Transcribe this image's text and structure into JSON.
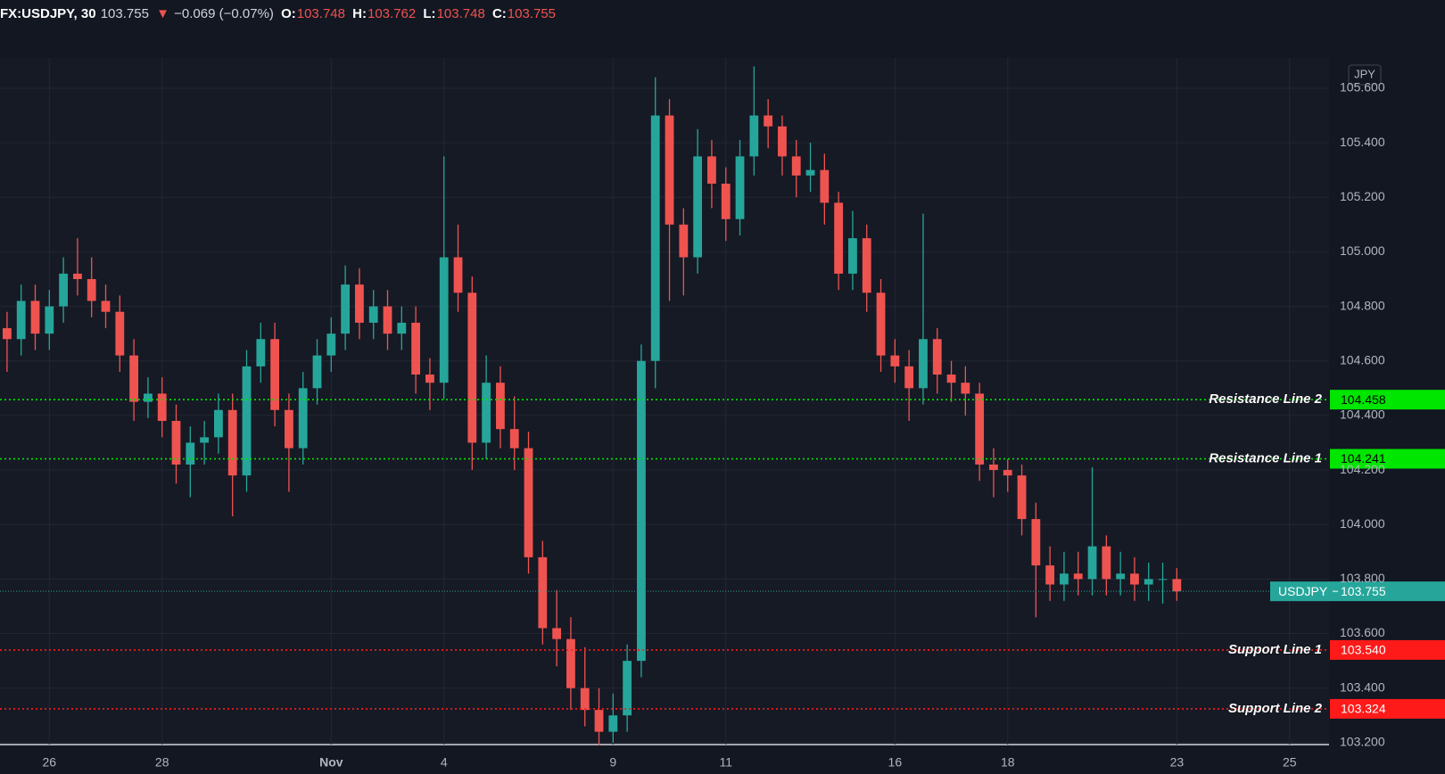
{
  "chart_data": {
    "type": "candlestick",
    "symbol": "FX:USDJPY, 30",
    "last_price": 103.755,
    "change_arrow": "▼",
    "change": "−0.069 (−0.07%)",
    "ohlc_labels": [
      "O:",
      "H:",
      "L:",
      "C:"
    ],
    "ohlc_values": [
      103.748,
      103.762,
      103.748,
      103.755
    ],
    "currency": "JPY",
    "up_color": "#26a69a",
    "down_color": "#ef5350",
    "open": [
      104.72,
      104.68,
      104.82,
      104.7,
      104.8,
      104.92,
      104.9,
      104.82,
      104.78,
      104.62,
      104.45,
      104.48,
      104.38,
      104.22,
      104.3,
      104.32,
      104.42,
      104.18,
      104.58,
      104.68,
      104.42,
      104.28,
      104.5,
      104.62,
      104.7,
      104.88,
      104.74,
      104.8,
      104.7,
      104.74,
      104.55,
      104.52,
      104.98,
      104.85,
      104.3,
      104.52,
      104.35,
      104.28,
      103.88,
      103.62,
      103.58,
      103.4,
      103.32,
      103.24,
      103.3,
      103.5,
      104.6,
      105.5,
      105.1,
      104.98,
      105.35,
      105.25,
      105.12,
      105.35,
      105.5,
      105.46,
      105.35,
      105.28,
      105.3,
      105.18,
      104.92,
      105.05,
      104.85,
      104.62,
      104.58,
      104.5,
      104.68,
      104.55,
      104.52,
      104.48,
      104.22,
      104.2,
      104.18,
      104.02,
      103.85,
      103.78,
      103.82,
      103.8,
      103.92,
      103.8,
      103.82,
      103.78,
      103.8,
      103.8
    ],
    "high": [
      104.78,
      104.88,
      104.88,
      104.86,
      104.98,
      105.05,
      104.98,
      104.88,
      104.84,
      104.68,
      104.54,
      104.54,
      104.44,
      104.36,
      104.38,
      104.48,
      104.48,
      104.64,
      104.74,
      104.74,
      104.48,
      104.56,
      104.68,
      104.76,
      104.95,
      104.94,
      104.86,
      104.86,
      104.8,
      104.8,
      104.61,
      105.35,
      105.1,
      104.91,
      104.62,
      104.58,
      104.47,
      104.34,
      103.94,
      103.76,
      103.66,
      103.55,
      103.4,
      103.38,
      103.56,
      104.66,
      105.64,
      105.56,
      105.16,
      105.45,
      105.41,
      105.31,
      105.41,
      105.68,
      105.56,
      105.5,
      105.41,
      105.4,
      105.36,
      105.22,
      105.15,
      105.1,
      104.9,
      104.68,
      104.64,
      105.14,
      104.72,
      104.6,
      104.58,
      104.52,
      104.28,
      104.24,
      104.22,
      104.08,
      103.92,
      103.9,
      103.9,
      104.21,
      103.96,
      103.9,
      103.88,
      103.86,
      103.86,
      103.84
    ],
    "low": [
      104.56,
      104.62,
      104.64,
      104.64,
      104.74,
      104.84,
      104.76,
      104.72,
      104.56,
      104.38,
      104.39,
      104.32,
      104.15,
      104.1,
      104.22,
      104.26,
      104.03,
      104.12,
      104.52,
      104.36,
      104.12,
      104.22,
      104.44,
      104.56,
      104.64,
      104.68,
      104.68,
      104.64,
      104.64,
      104.48,
      104.42,
      104.46,
      104.78,
      104.2,
      104.24,
      104.28,
      104.2,
      103.82,
      103.56,
      103.48,
      103.32,
      103.26,
      103.19,
      103.2,
      103.24,
      103.44,
      104.5,
      104.82,
      104.84,
      104.92,
      105.16,
      105.04,
      105.06,
      105.28,
      105.38,
      105.28,
      105.2,
      105.22,
      105.1,
      104.86,
      104.86,
      104.78,
      104.56,
      104.52,
      104.38,
      104.44,
      104.48,
      104.45,
      104.4,
      104.16,
      104.1,
      104.12,
      103.96,
      103.66,
      103.72,
      103.72,
      103.74,
      103.74,
      103.74,
      103.74,
      103.72,
      103.72,
      103.71,
      103.72
    ],
    "close": [
      104.68,
      104.82,
      104.7,
      104.8,
      104.92,
      104.9,
      104.82,
      104.78,
      104.62,
      104.45,
      104.48,
      104.38,
      104.22,
      104.3,
      104.32,
      104.42,
      104.18,
      104.58,
      104.68,
      104.42,
      104.28,
      104.5,
      104.62,
      104.7,
      104.88,
      104.74,
      104.8,
      104.7,
      104.74,
      104.55,
      104.52,
      104.98,
      104.85,
      104.3,
      104.52,
      104.35,
      104.28,
      103.88,
      103.62,
      103.58,
      103.4,
      103.32,
      103.24,
      103.3,
      103.5,
      104.6,
      105.5,
      105.1,
      104.98,
      105.35,
      105.25,
      105.12,
      105.35,
      105.5,
      105.46,
      105.35,
      105.28,
      105.3,
      105.18,
      104.92,
      105.05,
      104.85,
      104.62,
      104.58,
      104.5,
      104.68,
      104.55,
      104.52,
      104.48,
      104.22,
      104.2,
      104.18,
      104.02,
      103.85,
      103.78,
      103.82,
      103.8,
      103.92,
      103.8,
      103.82,
      103.78,
      103.8,
      103.8,
      103.755
    ],
    "xlim": [
      -0.5,
      93.8
    ],
    "xticks": [
      {
        "value": 3,
        "label": "26"
      },
      {
        "value": 11,
        "label": "28"
      },
      {
        "value": 23,
        "label": "Nov"
      },
      {
        "value": 31,
        "label": "4"
      },
      {
        "value": 43,
        "label": "9"
      },
      {
        "value": 51,
        "label": "11"
      },
      {
        "value": 63,
        "label": "16"
      },
      {
        "value": 71,
        "label": "18"
      },
      {
        "value": 83,
        "label": "23"
      },
      {
        "value": 91,
        "label": "25"
      }
    ],
    "ylim": [
      103.193,
      105.711
    ],
    "yticks": [
      {
        "value": 103.2,
        "label": "103.200"
      },
      {
        "value": 103.4,
        "label": "103.400"
      },
      {
        "value": 103.6,
        "label": "103.600"
      },
      {
        "value": 103.8,
        "label": "103.800"
      },
      {
        "value": 104.0,
        "label": "104.000"
      },
      {
        "value": 104.2,
        "label": "104.200"
      },
      {
        "value": 104.4,
        "label": "104.400"
      },
      {
        "value": 104.6,
        "label": "104.600"
      },
      {
        "value": 104.8,
        "label": "104.800"
      },
      {
        "value": 105.0,
        "label": "105.000"
      },
      {
        "value": 105.2,
        "label": "105.200"
      },
      {
        "value": 105.4,
        "label": "105.400"
      },
      {
        "value": 105.6,
        "label": "105.600"
      }
    ],
    "grid": true,
    "levels": {
      "names": [
        "Resistance Line 2",
        "Resistance Line 1",
        "Support Line 1",
        "Support Line 2"
      ],
      "values": [
        104.458,
        104.241,
        103.54,
        103.324
      ],
      "value_labels": [
        "104.458",
        "104.241",
        "103.540",
        "103.324"
      ],
      "colors": [
        "#00e600",
        "#00e600",
        "#ff1a1a",
        "#ff1a1a"
      ],
      "label_text_colors": [
        "#000000",
        "#000000",
        "#ffffff",
        "#ffffff"
      ]
    },
    "price_line": {
      "name": "USDJPY",
      "value": 103.755,
      "color": "#26a69a"
    }
  }
}
